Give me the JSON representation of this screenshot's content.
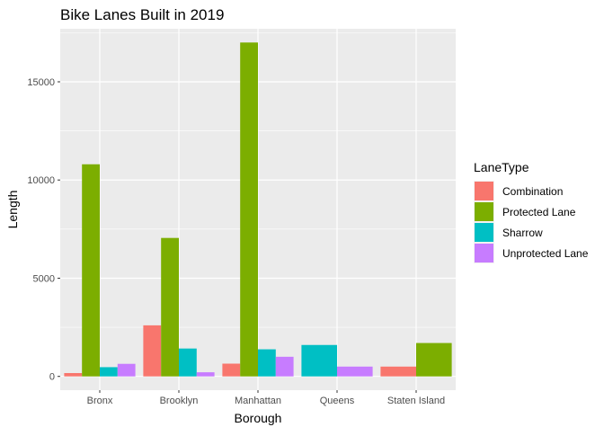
{
  "chart_data": {
    "type": "bar",
    "title": "Bike Lanes Built in 2019",
    "xlabel": "Borough",
    "ylabel": "Length",
    "categories": [
      "Bronx",
      "Brooklyn",
      "Manhattan",
      "Queens",
      "Staten Island"
    ],
    "ylim": [
      -700,
      17700
    ],
    "yticks": [
      0,
      5000,
      10000,
      15000
    ],
    "ytick_labels": [
      "0",
      "5000",
      "10000",
      "15000"
    ],
    "grid": true,
    "legend_position": "right",
    "legend_title": "LaneType",
    "background": "#ebebeb",
    "series": [
      {
        "name": "Combination",
        "color": "#F8766D",
        "values": [
          170,
          2600,
          650,
          0,
          500
        ]
      },
      {
        "name": "Protected Lane",
        "color": "#7CAE00",
        "values": [
          10800,
          7050,
          17000,
          0,
          1700
        ]
      },
      {
        "name": "Sharrow",
        "color": "#00BFC4",
        "values": [
          470,
          1420,
          1380,
          1600,
          0
        ]
      },
      {
        "name": "Unprotected Lane",
        "color": "#C77CFF",
        "values": [
          640,
          210,
          1000,
          500,
          0
        ]
      }
    ],
    "bars_present": {
      "Bronx": [
        "Combination",
        "Protected Lane",
        "Sharrow",
        "Unprotected Lane"
      ],
      "Brooklyn": [
        "Combination",
        "Protected Lane",
        "Sharrow",
        "Unprotected Lane"
      ],
      "Manhattan": [
        "Combination",
        "Protected Lane",
        "Sharrow",
        "Unprotected Lane"
      ],
      "Queens": [
        "Sharrow",
        "Unprotected Lane"
      ],
      "Staten Island": [
        "Combination",
        "Protected Lane"
      ]
    }
  }
}
